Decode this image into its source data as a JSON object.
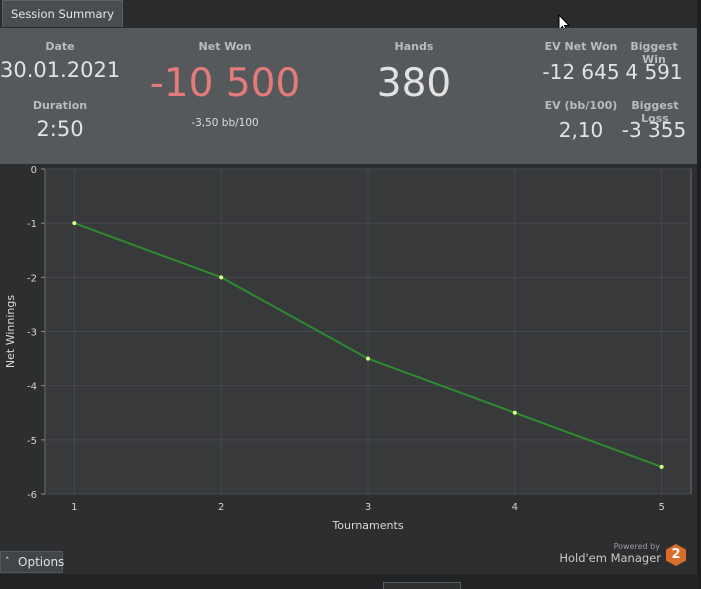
{
  "tab": {
    "label": "Session Summary"
  },
  "summary": {
    "date": {
      "label": "Date",
      "value": "30.01.2021"
    },
    "duration": {
      "label": "Duration",
      "value": "2:50"
    },
    "net_won": {
      "label": "Net Won",
      "value": "-10 500",
      "sub": "-3,50 bb/100"
    },
    "hands": {
      "label": "Hands",
      "value": "380"
    },
    "ev_net_won": {
      "label": "EV Net Won",
      "value": "-12 645"
    },
    "biggest_win": {
      "label": "Biggest Win",
      "value": "4 591"
    },
    "ev_bb100": {
      "label": "EV (bb/100)",
      "value": "2,10"
    },
    "biggest_loss": {
      "label": "Biggest Loss",
      "value": "-3 355"
    }
  },
  "colors": {
    "negative": "#e37b7b",
    "line": "#2e8b2e",
    "point": "#d8ff8a"
  },
  "chart_data": {
    "type": "line",
    "xlabel": "Tournaments",
    "ylabel": "Net Winnings",
    "x": [
      1,
      2,
      3,
      4,
      5
    ],
    "series": [
      {
        "values": [
          -1,
          -2,
          -3.5,
          -4.5,
          -5.5
        ]
      }
    ],
    "xlim": [
      0.8,
      5.2
    ],
    "ylim": [
      -6,
      0
    ],
    "xticks": [
      1,
      2,
      3,
      4,
      5
    ],
    "yticks": [
      0,
      -1,
      -2,
      -3,
      -4,
      -5,
      -6
    ],
    "grid": true
  },
  "options": {
    "label": "Options",
    "caret_icon": "caret-up-icon"
  },
  "branding": {
    "powered_by": "Powered by",
    "name": "Hold'em Manager",
    "logo": "2"
  }
}
